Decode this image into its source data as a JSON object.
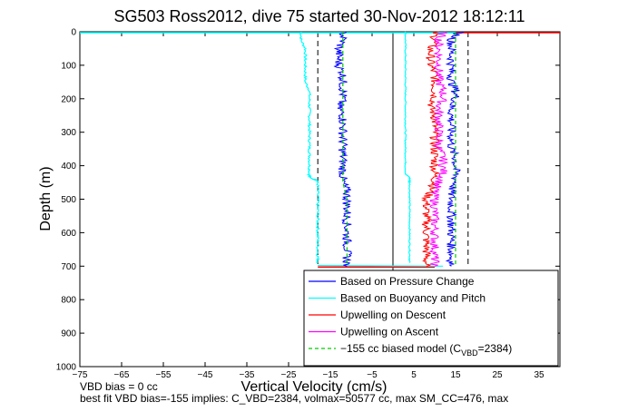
{
  "chart_data": {
    "type": "line",
    "title": "SG503 Ross2012, dive 75 started 30-Nov-2012 18:12:11",
    "xlabel": "Vertical Velocity (cm/s)",
    "ylabel": "Depth (m)",
    "xlim": [
      -75,
      40
    ],
    "ylim": [
      0,
      1000
    ],
    "y_reversed": true,
    "grid": false,
    "legend_position": "bottom-right",
    "xticks": [
      -75,
      -65,
      -55,
      -45,
      -35,
      -25,
      -15,
      -5,
      5,
      15,
      25,
      35
    ],
    "yticks": [
      0,
      100,
      200,
      300,
      400,
      500,
      600,
      700,
      800,
      900,
      1000
    ],
    "vlines": [
      {
        "x": 0,
        "style": "solid"
      },
      {
        "x": -18,
        "style": "dashed",
        "y": [
          0,
          700
        ]
      },
      {
        "x": 18,
        "style": "dashed",
        "y": [
          0,
          700
        ]
      }
    ],
    "series": [
      {
        "name": "Based on Pressure Change",
        "color": "#0000ff",
        "depth": [
          0,
          25,
          50,
          75,
          100,
          125,
          150,
          175,
          200,
          225,
          250,
          275,
          300,
          325,
          350,
          375,
          400,
          425,
          450,
          475,
          500,
          525,
          550,
          575,
          600,
          625,
          650,
          675,
          700
        ],
        "descent": [
          -12,
          -12,
          -13,
          -13,
          -13,
          -12,
          -12,
          -12,
          -12,
          -13,
          -12,
          -12,
          -12,
          -12,
          -12,
          -12,
          -12,
          -12,
          -12,
          -11,
          -11,
          -11,
          -11,
          -11,
          -11,
          -11,
          -11,
          -11,
          -11
        ],
        "ascent": [
          16,
          14,
          14,
          14,
          14,
          14,
          14,
          15,
          15,
          14,
          14,
          14,
          14,
          14,
          14,
          15,
          15,
          15,
          15,
          14,
          14,
          14,
          14,
          14,
          14,
          14,
          14,
          14,
          14
        ]
      },
      {
        "name": "Based on Buoyancy and Pitch",
        "color": "#00ffff",
        "depth": [
          0,
          25,
          50,
          75,
          100,
          125,
          150,
          175,
          200,
          225,
          250,
          275,
          300,
          325,
          350,
          375,
          400,
          425,
          435,
          445,
          450,
          475,
          500,
          525,
          550,
          575,
          600,
          625,
          650,
          675,
          690
        ],
        "descent": [
          -22,
          -22,
          -21,
          -21,
          -21,
          -21,
          -21,
          -20,
          -20,
          -20,
          -20,
          -20,
          -20,
          -20,
          -20,
          -20,
          -20,
          -20,
          -20,
          -18,
          -18,
          -18,
          -18,
          -18,
          -18,
          -18,
          -18,
          -18,
          -18,
          -18,
          -18
        ],
        "ascent": [
          3,
          3,
          3,
          3,
          3,
          3,
          3,
          3,
          3,
          3,
          3,
          3,
          3,
          3,
          3,
          3,
          3,
          3,
          4,
          4,
          4,
          4,
          4,
          4,
          4,
          4,
          4,
          4,
          4,
          4,
          4
        ]
      },
      {
        "name": "Upwelling on Descent",
        "color": "#ff0000",
        "depth": [
          0,
          25,
          50,
          75,
          100,
          125,
          150,
          175,
          200,
          225,
          250,
          275,
          300,
          325,
          350,
          375,
          400,
          425,
          450,
          475,
          500,
          525,
          550,
          575,
          600,
          625,
          650,
          675,
          700
        ],
        "values": [
          10,
          10,
          9,
          9,
          9,
          10,
          10,
          10,
          10,
          9,
          10,
          10,
          10,
          10,
          10,
          10,
          10,
          10,
          10,
          9,
          8,
          8,
          8,
          8,
          8,
          8,
          8,
          8,
          8
        ]
      },
      {
        "name": "Upwelling on Ascent",
        "color": "#ff00ff",
        "depth": [
          0,
          25,
          50,
          75,
          100,
          125,
          150,
          175,
          200,
          225,
          250,
          275,
          300,
          325,
          350,
          375,
          400,
          425,
          450,
          475,
          500,
          525,
          550,
          575,
          600,
          625,
          650,
          675,
          700
        ],
        "values": [
          12,
          11,
          11,
          11,
          11,
          11,
          11,
          12,
          12,
          11,
          11,
          11,
          11,
          11,
          11,
          12,
          12,
          12,
          11,
          10,
          10,
          10,
          10,
          10,
          10,
          10,
          10,
          10,
          10
        ]
      },
      {
        "name": "-155 cc biased model (C_VBD=2384)",
        "color": "#00cc00",
        "depth": [
          0,
          50,
          100,
          150,
          200,
          250,
          300,
          350,
          400,
          450,
          500,
          550,
          600,
          650,
          700
        ],
        "descent": [
          -12,
          -12,
          -12,
          -12,
          -12,
          -12,
          -12,
          -12,
          -12,
          -12,
          -11,
          -11,
          -11,
          -11,
          -11
        ],
        "ascent": [
          15,
          15,
          15,
          15,
          15,
          15,
          15,
          15,
          15,
          15,
          15,
          15,
          15,
          15,
          15
        ]
      }
    ],
    "surface_segments": [
      {
        "color": "#00ffff",
        "x": [
          -75,
          15
        ],
        "depth": 0
      },
      {
        "color": "#ff0000",
        "x": [
          15,
          40
        ],
        "depth": 0
      },
      {
        "color": "#ff0000",
        "x": [
          -18,
          10
        ],
        "depth": 700
      }
    ]
  },
  "legend": {
    "items": [
      {
        "label": "Based on Pressure Change",
        "color": "#0000ff",
        "dashed": false
      },
      {
        "label": "Based on Buoyancy and Pitch",
        "color": "#00ffff",
        "dashed": false
      },
      {
        "label": "Upwelling on Descent",
        "color": "#ff0000",
        "dashed": false
      },
      {
        "label": "Upwelling on Ascent",
        "color": "#ff00ff",
        "dashed": false
      },
      {
        "label": "−155 cc biased model (C",
        "sub": "VBD",
        "suffix": "=2384)",
        "color": "#00cc00",
        "dashed": true
      }
    ]
  },
  "notes": {
    "line1": "VBD bias = 0 cc",
    "line2": "best fit VBD bias=-155 implies: C_VBD=2384, volmax=50577 cc, max SM_CC=476, max"
  }
}
